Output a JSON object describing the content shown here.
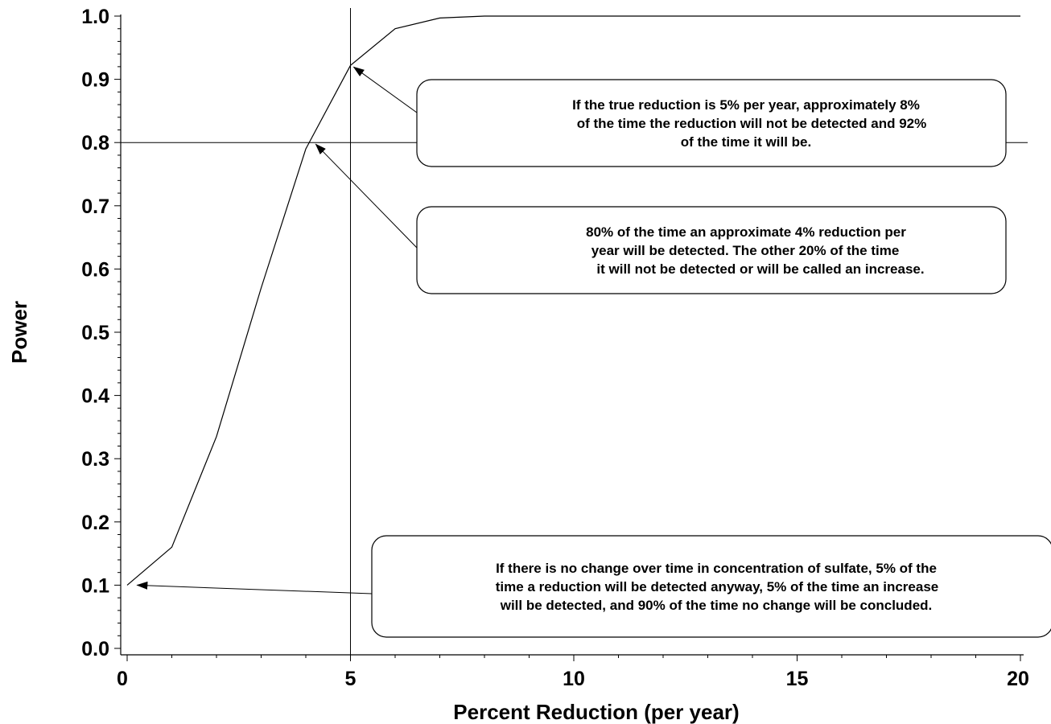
{
  "chart_data": {
    "type": "line",
    "xlabel": "Percent Reduction (per year)",
    "ylabel": "Power",
    "xlim": [
      0,
      20
    ],
    "ylim": [
      0,
      1
    ],
    "x_ticks": [
      "0",
      "5",
      "10",
      "15",
      "20"
    ],
    "y_ticks": [
      "0.0",
      "0.1",
      "0.2",
      "0.3",
      "0.4",
      "0.5",
      "0.6",
      "0.7",
      "0.8",
      "0.9",
      "1.0"
    ],
    "grid": false,
    "reference_lines": {
      "vertical_x": 5,
      "horizontal_y": 0.8
    },
    "series": [
      {
        "x": [
          0,
          1,
          2,
          3,
          4,
          5,
          6,
          7,
          8,
          9,
          10,
          11,
          12,
          13,
          14,
          15,
          16,
          17,
          18,
          19,
          20
        ],
        "y": [
          0.1,
          0.16,
          0.335,
          0.57,
          0.79,
          0.922,
          0.98,
          0.997,
          1.0,
          1.0,
          1.0,
          1.0,
          1.0,
          1.0,
          1.0,
          1.0,
          1.0,
          1.0,
          1.0,
          1.0,
          1.0
        ]
      }
    ],
    "annotations": [
      {
        "lines": [
          "If the true reduction is 5% per year, approximately 8%",
          "of the time the reduction will not be detected and 92%",
          "of the time it will be."
        ],
        "point_x": 5,
        "point_y": 0.922
      },
      {
        "lines": [
          "80% of the time an approximate 4% reduction per",
          "year will be detected.  The other 20% of the time",
          "it will not be detected or will be called an increase."
        ],
        "point_x": 4.15,
        "point_y": 0.8
      },
      {
        "lines": [
          "If there is no change over time in concentration of sulfate, 5% of the",
          "time a reduction will be detected anyway, 5% of the time an increase",
          "will be detected, and 90% of the time no change will be concluded."
        ],
        "point_x": 0.15,
        "point_y": 0.1
      }
    ]
  }
}
